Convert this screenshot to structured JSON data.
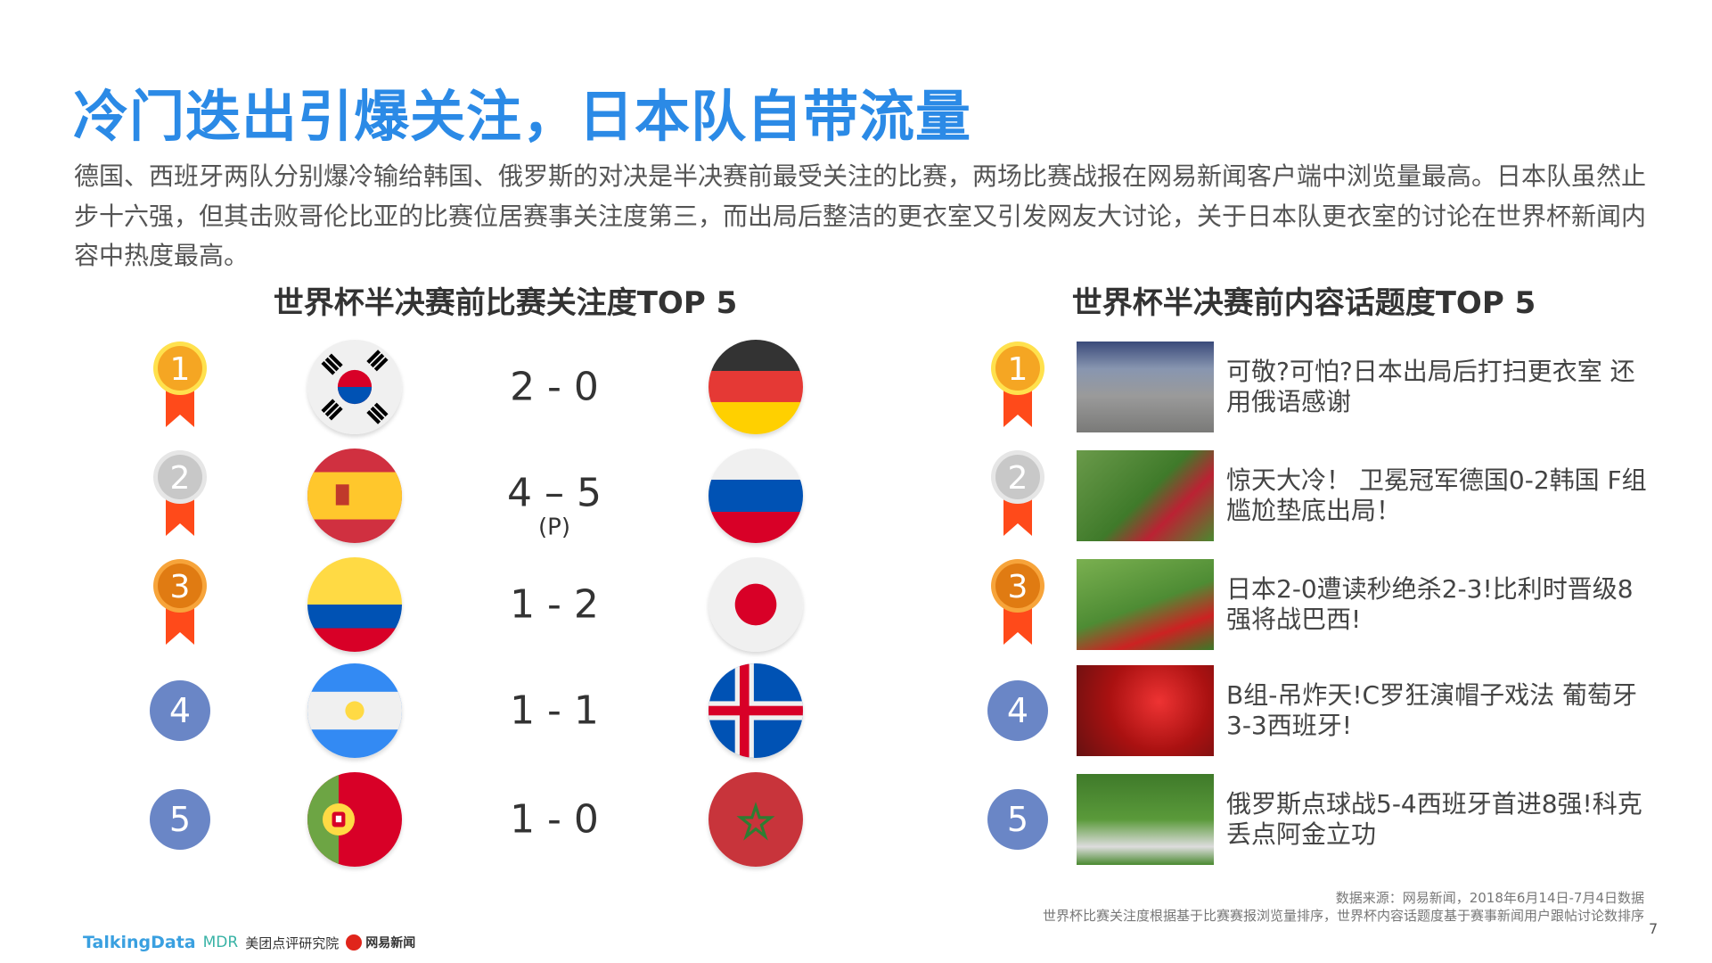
{
  "title": "冷门迭出引爆关注，日本队自带流量",
  "paragraph": "德国、西班牙两队分别爆冷输给韩国、俄罗斯的对决是半决赛前最受关注的比赛，两场比赛战报在网易新闻客户端中浏览量最高。日本队虽然止步十六强，但其击败哥伦比亚的比赛位居赛事关注度第三，而出局后整洁的更衣室又引发网友大讨论，关于日本队更衣室的讨论在世界杯新闻内容中热度最高。",
  "left": {
    "heading": "世界杯半决赛前比赛关注度TOP 5",
    "matches": [
      {
        "rank": "1",
        "team_a": "korea",
        "score": "2 - 0",
        "note": "",
        "team_b": "germany"
      },
      {
        "rank": "2",
        "team_a": "spain",
        "score": "4 – 5",
        "note": "(P)",
        "team_b": "russia"
      },
      {
        "rank": "3",
        "team_a": "colombia",
        "score": "1 - 2",
        "note": "",
        "team_b": "japan"
      },
      {
        "rank": "4",
        "team_a": "argentina",
        "score": "1 - 1",
        "note": "",
        "team_b": "iceland"
      },
      {
        "rank": "5",
        "team_a": "portugal",
        "score": "1 - 0",
        "note": "",
        "team_b": "morocco"
      }
    ]
  },
  "right": {
    "heading": "世界杯半决赛前内容话题度TOP 5",
    "items": [
      {
        "rank": "1",
        "headline": "可敬?可怕?日本出局后打扫更衣室 还用俄语感谢"
      },
      {
        "rank": "2",
        "headline": "惊天大冷！ 卫冕冠军德国0-2韩国 F组尴尬垫底出局！"
      },
      {
        "rank": "3",
        "headline": "日本2-0遭读秒绝杀2-3!比利时晋级8强将战巴西!"
      },
      {
        "rank": "4",
        "headline": "B组-吊炸天!C罗狂演帽子戏法 葡萄牙3-3西班牙!"
      },
      {
        "rank": "5",
        "headline": "俄罗斯点球战5-4西班牙首进8强!科克丢点阿金立功"
      }
    ]
  },
  "footer": {
    "source": "数据来源：网易新闻，2018年6月14日-7月4日数据",
    "note": "世界杯比赛关注度根据基于比赛赛报浏览量排序，世界杯内容话题度基于赛事新闻用户跟帖讨论数排序",
    "page": "7",
    "logos": [
      "TalkingData",
      "MDR",
      "美团点评研究院",
      "网易新闻"
    ]
  },
  "colors": {
    "title": "#2b8ae6",
    "gold": "#f5a623",
    "silver": "#c8c8c8",
    "bronze": "#e07b12",
    "ribbon": "#ff4a1a",
    "rank_badge": "#6a86c6"
  }
}
